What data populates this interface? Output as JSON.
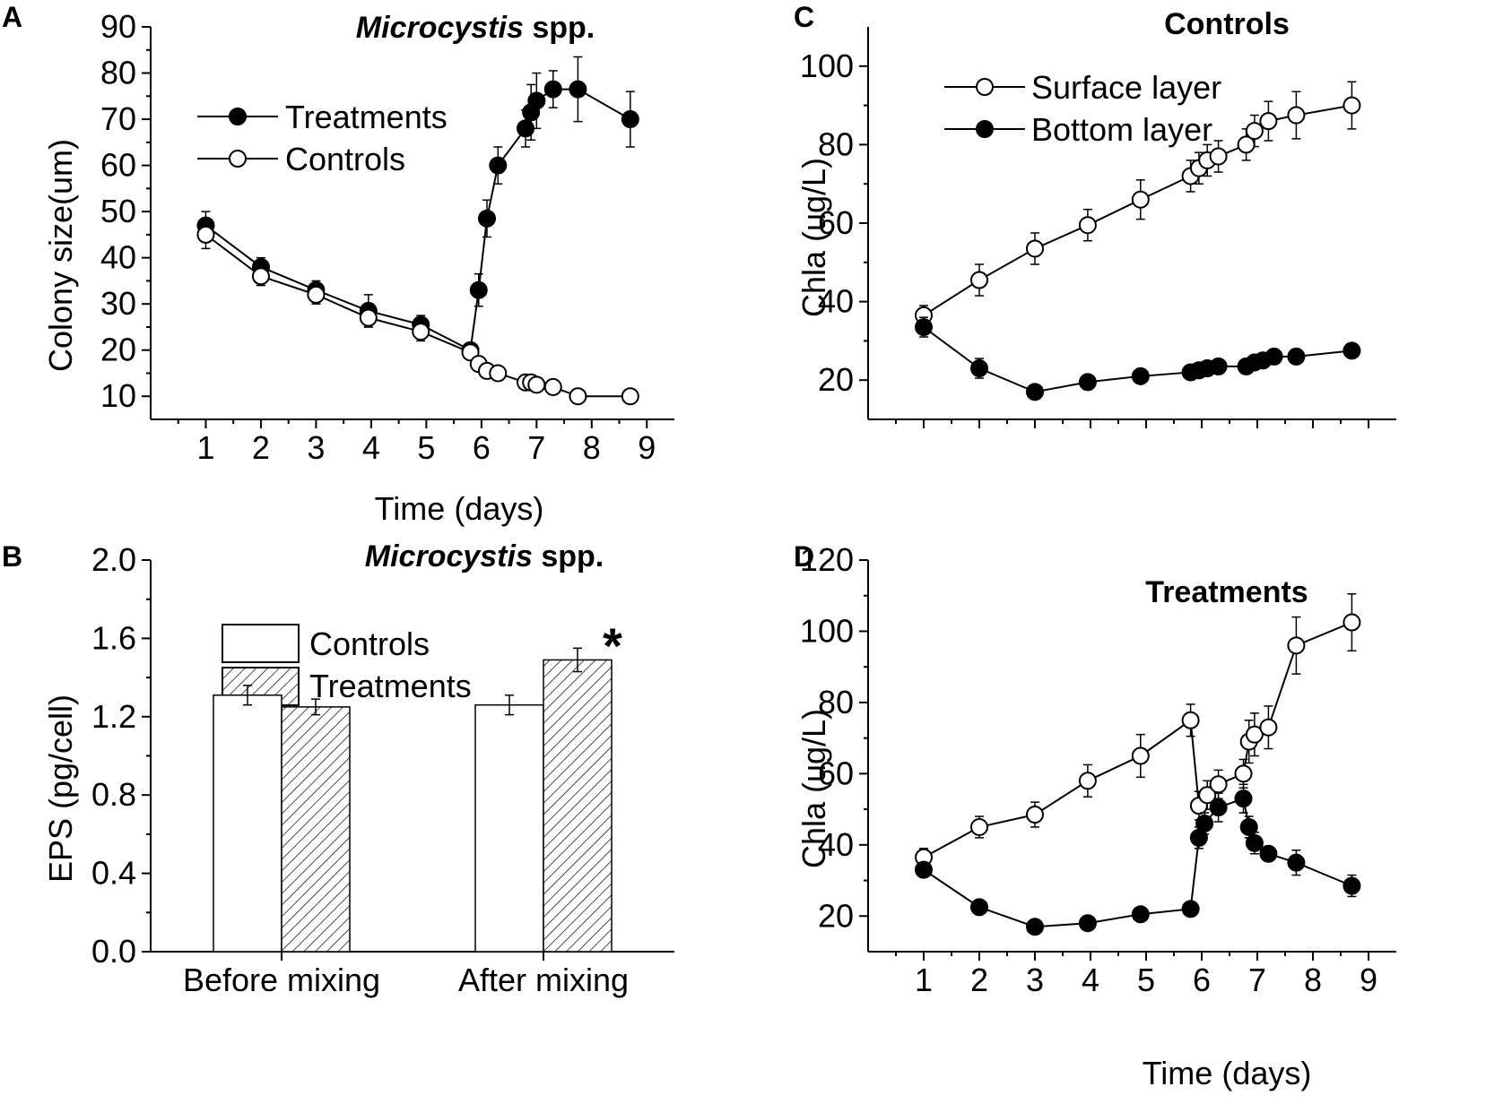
{
  "figure": {
    "panels": [
      {
        "id": "A",
        "letter": "A"
      },
      {
        "id": "B",
        "letter": "B"
      },
      {
        "id": "C",
        "letter": "C"
      },
      {
        "id": "D",
        "letter": "D"
      }
    ]
  },
  "chart_data": [
    {
      "panel": "A",
      "type": "line",
      "title_italic": "Microcystis",
      "title_rest": " spp.",
      "xlabel": "Time (days)",
      "ylabel": "Colony size(um)",
      "xlim": [
        0.0,
        9.5
      ],
      "ylim": [
        5,
        90
      ],
      "xticks": [
        1,
        2,
        3,
        4,
        5,
        6,
        7,
        8,
        9
      ],
      "yticks": [
        10,
        20,
        30,
        40,
        50,
        60,
        70,
        80,
        90
      ],
      "legend_position": "top-left",
      "series": [
        {
          "name": "Treatments",
          "marker": "filled",
          "x": [
            1.0,
            2.0,
            3.0,
            3.95,
            4.9,
            5.8,
            5.95,
            6.1,
            6.3,
            6.8,
            6.9,
            7.0,
            7.3,
            7.75,
            8.7
          ],
          "y": [
            47,
            38,
            33,
            28.5,
            25.5,
            20,
            33,
            48.5,
            60,
            68,
            71.5,
            74,
            76.5,
            76.5,
            70
          ],
          "err": [
            3,
            2,
            2,
            3.5,
            2,
            1.5,
            3.5,
            4,
            4,
            4,
            6,
            6,
            4,
            7,
            6
          ]
        },
        {
          "name": "Controls",
          "marker": "open",
          "x": [
            1.0,
            2.0,
            3.0,
            3.95,
            4.9,
            5.8,
            5.95,
            6.1,
            6.3,
            6.8,
            6.9,
            7.0,
            7.3,
            7.75,
            8.7
          ],
          "y": [
            45,
            36,
            32,
            27,
            24,
            19.5,
            17,
            15.5,
            15,
            13,
            13,
            12.5,
            12,
            10,
            10
          ],
          "err": [
            3,
            2,
            2,
            2,
            2,
            1.5,
            1.5,
            1,
            1,
            1.5,
            1.5,
            1,
            1,
            0.5,
            0.5
          ]
        }
      ]
    },
    {
      "panel": "B",
      "type": "bar",
      "title_italic": "Microcystis",
      "title_rest": " spp.",
      "xlabel": "",
      "ylabel": "EPS (pg/cell)",
      "ylim": [
        0.0,
        2.0
      ],
      "yticks": [
        "0.0",
        "0.4",
        "0.8",
        "1.2",
        "1.6",
        "2.0"
      ],
      "categories": [
        "Before mixing",
        "After mixing"
      ],
      "legend_position": "top-left",
      "annotation": "*",
      "series": [
        {
          "name": "Controls",
          "pattern": "open",
          "values": [
            1.31,
            1.26
          ],
          "err": [
            0.05,
            0.05
          ]
        },
        {
          "name": "Treatments",
          "pattern": "hatched",
          "values": [
            1.25,
            1.49
          ],
          "err": [
            0.04,
            0.06
          ]
        }
      ]
    },
    {
      "panel": "C",
      "type": "line",
      "title": "Controls",
      "xlabel": "",
      "ylabel": "Chla (ug/L)",
      "xlim": [
        0.0,
        9.5
      ],
      "ylim": [
        10,
        110
      ],
      "xticks": [],
      "yticks": [
        20,
        40,
        60,
        80,
        100
      ],
      "legend_position": "top-left",
      "series": [
        {
          "name": "Surface layer",
          "marker": "open",
          "x": [
            1.0,
            2.0,
            3.0,
            3.95,
            4.9,
            5.8,
            5.95,
            6.1,
            6.3,
            6.8,
            6.95,
            7.2,
            7.7,
            8.7
          ],
          "y": [
            36.5,
            45.5,
            53.5,
            59.5,
            66,
            72,
            74,
            76,
            77,
            80,
            83.5,
            86,
            87.5,
            90
          ],
          "err": [
            2.5,
            4,
            4,
            4,
            5,
            4,
            4,
            4,
            4,
            4,
            4,
            5,
            6,
            6
          ]
        },
        {
          "name": "Bottom layer",
          "marker": "filled",
          "x": [
            1.0,
            2.0,
            3.0,
            3.95,
            4.9,
            5.8,
            5.95,
            6.1,
            6.3,
            6.8,
            6.95,
            7.1,
            7.3,
            7.7,
            8.7
          ],
          "y": [
            33.5,
            23,
            17,
            19.5,
            21,
            22,
            22.5,
            23,
            23.5,
            23.5,
            24.5,
            25,
            26,
            26,
            27.5
          ],
          "err": [
            2.5,
            2.5,
            1,
            1,
            1,
            1,
            1,
            1,
            1,
            1,
            1,
            1,
            1.5,
            1.5,
            1.5
          ]
        }
      ]
    },
    {
      "panel": "D",
      "type": "line",
      "title": "Treatments",
      "xlabel": "Time (days)",
      "ylabel": "Chla (ug/L)",
      "xlim": [
        0.0,
        9.5
      ],
      "ylim": [
        10,
        120
      ],
      "xticks": [
        1,
        2,
        3,
        4,
        5,
        6,
        7,
        8,
        9
      ],
      "yticks": [
        20,
        40,
        60,
        80,
        100,
        120
      ],
      "series": [
        {
          "name": "Surface layer",
          "marker": "open",
          "x": [
            1.0,
            2.0,
            3.0,
            3.95,
            4.9,
            5.8,
            5.95,
            6.1,
            6.3,
            6.75,
            6.85,
            6.95,
            7.2,
            7.7,
            8.7
          ],
          "y": [
            36.5,
            45,
            48.5,
            58,
            65,
            75,
            51,
            54,
            57,
            60,
            69,
            71,
            73,
            96,
            102.5
          ],
          "err": [
            2.5,
            3,
            3.5,
            4.5,
            6,
            4.5,
            4,
            4,
            4,
            4,
            6,
            6,
            6,
            8,
            8
          ]
        },
        {
          "name": "Bottom layer",
          "marker": "filled",
          "x": [
            1.0,
            2.0,
            3.0,
            3.95,
            4.9,
            5.8,
            5.95,
            6.05,
            6.3,
            6.75,
            6.85,
            6.95,
            7.2,
            7.7,
            8.7
          ],
          "y": [
            33,
            22.5,
            17,
            18,
            20.5,
            22,
            42,
            46,
            50.5,
            53,
            45,
            40.5,
            37.5,
            35,
            28.5
          ],
          "err": [
            2,
            1.5,
            1.5,
            2,
            1.5,
            1.5,
            3,
            3,
            4,
            4,
            3,
            3,
            2,
            3.5,
            3
          ]
        }
      ]
    }
  ]
}
